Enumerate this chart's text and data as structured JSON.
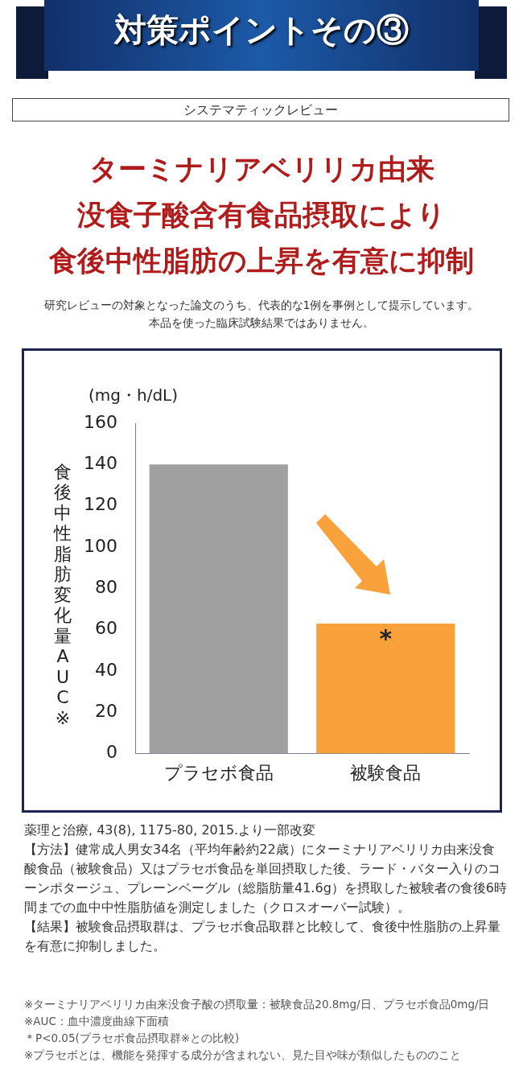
{
  "chart_data": {
    "type": "bar",
    "title": "対策ポイントその③",
    "ylabel": "食後中性脂肪変化量AUC※",
    "categories": [
      "プラセボ食品",
      "被験食品"
    ],
    "values": [
      140,
      63
    ],
    "colors": [
      "#a0a0a0",
      "#f9a13a"
    ],
    "ylim": [
      0,
      160
    ],
    "yticks": [
      0,
      20,
      40,
      60,
      80,
      100,
      120,
      140,
      160
    ],
    "grid": false,
    "legend": false,
    "annotations": [
      "システマティックレビュー",
      "ターミナリアベリリカ由来",
      "没食子酸含有食品摂取により",
      "食後中性脂肪の上昇を有意に抑制",
      "研究レビューの対象となった論文のうち、代表的な1例を事例として提示しています。",
      "本品を使った臨床試験結果ではありません。",
      "(mg・h/dL)",
      "*",
      "薬理と治療, 43(8), 1175-80, 2015.より一部改変",
      "【方法】健常成人男女34名（平均年齢約22歳）にターミナリアベリリカ由来没食酸食品（被験食品）又はプラセボ食品を単回摂取した後、ラード・バター入りのコーンポタージュ、プレーンベーグル（総脂肪量41.6g）を摂取した被験者の食後6時間までの血中中性脂肪値を測定しました（クロスオーバー試験）。",
      "【結果】被験食品摂取群は、プラセボ食品取群と比較して、食後中性脂肪の上昇量を有意に抑制しました。",
      "※ターミナリアベリリカ由来没食子酸の摂取量：被験食品20.8mg/日、プラセボ食品0mg/日",
      "※AUC：血中濃度曲線下面積",
      "＊P<0.05(プラセボ食品摂取群※との比較)",
      "※プラセボとは、機能を発揮する成分が含まれない、見た目や味が類似したもののこと"
    ]
  }
}
